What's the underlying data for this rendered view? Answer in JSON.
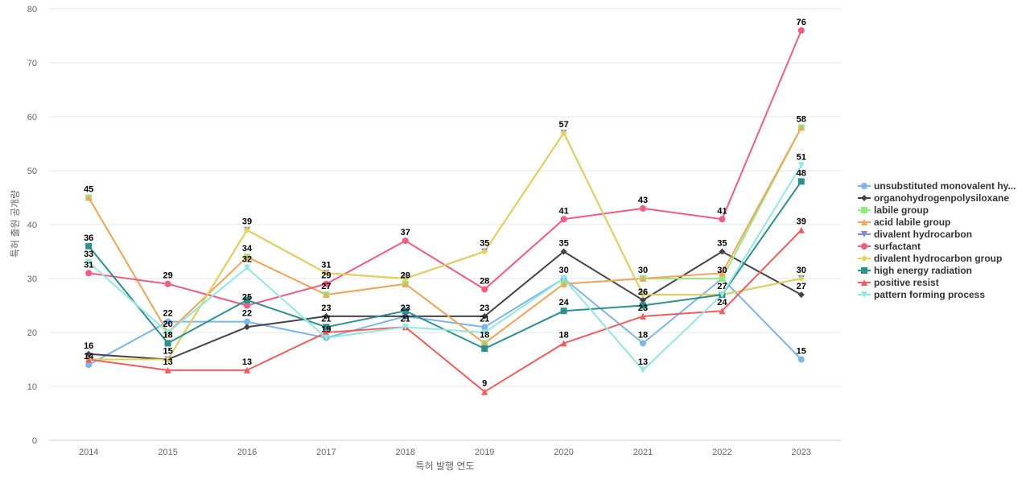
{
  "chart_data": {
    "type": "line",
    "xlabel": "특허 발행 연도",
    "ylabel": "특허 출원 공개량",
    "ylim": [
      0,
      80
    ],
    "yticks": [
      0,
      10,
      20,
      30,
      40,
      50,
      60,
      70,
      80
    ],
    "grid": true,
    "legend_position": "right",
    "categories": [
      "2014",
      "2015",
      "2016",
      "2017",
      "2018",
      "2019",
      "2020",
      "2021",
      "2022",
      "2023"
    ],
    "series": [
      {
        "name": "unsubstituted monovalent hy...",
        "color": "#7cb5ec",
        "marker": "circle",
        "values": [
          14,
          22,
          22,
          19,
          23,
          21,
          30,
          18,
          30,
          15
        ]
      },
      {
        "name": "organohydrogenpolysiloxane",
        "color": "#434348",
        "marker": "diamond",
        "values": [
          16,
          15,
          21,
          23,
          23,
          23,
          35,
          26,
          35,
          27
        ]
      },
      {
        "name": "labile group",
        "color": "#90ed7d",
        "marker": "square",
        "values": [
          45,
          20,
          34,
          27,
          29,
          18,
          29,
          30,
          30,
          58
        ]
      },
      {
        "name": "acid labile group",
        "color": "#f7a35c",
        "marker": "triangle",
        "values": [
          45,
          20,
          34,
          27,
          29,
          18,
          29,
          30,
          31,
          58
        ]
      },
      {
        "name": "divalent hydrocarbon",
        "color": "#8085e9",
        "marker": "triangle-down",
        "values": [
          15,
          15,
          39,
          31,
          30,
          35,
          57,
          27,
          27,
          30
        ]
      },
      {
        "name": "surfactant",
        "color": "#f15c80",
        "marker": "circle",
        "values": [
          31,
          29,
          25,
          29,
          37,
          28,
          41,
          43,
          41,
          76
        ]
      },
      {
        "name": "divalent hydrocarbon group",
        "color": "#e4d354",
        "marker": "diamond",
        "values": [
          15,
          15,
          39,
          31,
          30,
          35,
          57,
          27,
          27,
          30
        ]
      },
      {
        "name": "high energy radiation",
        "color": "#2b908f",
        "marker": "square",
        "values": [
          36,
          18,
          26,
          21,
          24,
          17,
          24,
          25,
          27,
          48
        ]
      },
      {
        "name": "positive resist",
        "color": "#f45b5b",
        "marker": "triangle",
        "values": [
          15,
          13,
          13,
          20,
          21,
          9,
          18,
          23,
          24,
          39
        ]
      },
      {
        "name": "pattern forming process",
        "color": "#91e8e1",
        "marker": "triangle-down",
        "values": [
          33,
          20,
          32,
          19,
          21,
          20,
          30,
          13,
          27,
          51
        ]
      }
    ],
    "data_labels": [
      {
        "x": "2014",
        "y": 45,
        "text": "45"
      },
      {
        "x": "2014",
        "y": 36,
        "text": "36"
      },
      {
        "x": "2014",
        "y": 33,
        "text": "33"
      },
      {
        "x": "2014",
        "y": 31,
        "text": "31"
      },
      {
        "x": "2014",
        "y": 16,
        "text": "16"
      },
      {
        "x": "2014",
        "y": 14,
        "text": "14"
      },
      {
        "x": "2015",
        "y": 29,
        "text": "29"
      },
      {
        "x": "2015",
        "y": 22,
        "text": "22"
      },
      {
        "x": "2015",
        "y": 20,
        "text": "20"
      },
      {
        "x": "2015",
        "y": 18,
        "text": "18"
      },
      {
        "x": "2015",
        "y": 15,
        "text": "15"
      },
      {
        "x": "2015",
        "y": 13,
        "text": "13"
      },
      {
        "x": "2016",
        "y": 39,
        "text": "39"
      },
      {
        "x": "2016",
        "y": 34,
        "text": "34"
      },
      {
        "x": "2016",
        "y": 32,
        "text": "32"
      },
      {
        "x": "2016",
        "y": 25,
        "text": "25"
      },
      {
        "x": "2016",
        "y": 22,
        "text": "22"
      },
      {
        "x": "2016",
        "y": 13,
        "text": "13"
      },
      {
        "x": "2017",
        "y": 31,
        "text": "31"
      },
      {
        "x": "2017",
        "y": 29,
        "text": "29"
      },
      {
        "x": "2017",
        "y": 27,
        "text": "27"
      },
      {
        "x": "2017",
        "y": 23,
        "text": "23"
      },
      {
        "x": "2017",
        "y": 21,
        "text": "21"
      },
      {
        "x": "2017",
        "y": 19,
        "text": "19"
      },
      {
        "x": "2018",
        "y": 37,
        "text": "37"
      },
      {
        "x": "2018",
        "y": 29,
        "text": "29"
      },
      {
        "x": "2018",
        "y": 23,
        "text": "23"
      },
      {
        "x": "2018",
        "y": 21,
        "text": "21"
      },
      {
        "x": "2019",
        "y": 35,
        "text": "35"
      },
      {
        "x": "2019",
        "y": 28,
        "text": "28"
      },
      {
        "x": "2019",
        "y": 23,
        "text": "23"
      },
      {
        "x": "2019",
        "y": 21,
        "text": "21"
      },
      {
        "x": "2019",
        "y": 18,
        "text": "18"
      },
      {
        "x": "2019",
        "y": 9,
        "text": "9"
      },
      {
        "x": "2020",
        "y": 57,
        "text": "57"
      },
      {
        "x": "2020",
        "y": 41,
        "text": "41"
      },
      {
        "x": "2020",
        "y": 35,
        "text": "35"
      },
      {
        "x": "2020",
        "y": 30,
        "text": "30"
      },
      {
        "x": "2020",
        "y": 24,
        "text": "24"
      },
      {
        "x": "2020",
        "y": 18,
        "text": "18"
      },
      {
        "x": "2021",
        "y": 43,
        "text": "43"
      },
      {
        "x": "2021",
        "y": 30,
        "text": "30"
      },
      {
        "x": "2021",
        "y": 26,
        "text": "26"
      },
      {
        "x": "2021",
        "y": 23,
        "text": "23"
      },
      {
        "x": "2021",
        "y": 18,
        "text": "18"
      },
      {
        "x": "2021",
        "y": 13,
        "text": "13"
      },
      {
        "x": "2022",
        "y": 41,
        "text": "41"
      },
      {
        "x": "2022",
        "y": 35,
        "text": "35"
      },
      {
        "x": "2022",
        "y": 30,
        "text": "30"
      },
      {
        "x": "2022",
        "y": 27,
        "text": "27"
      },
      {
        "x": "2022",
        "y": 24,
        "text": "24"
      },
      {
        "x": "2023",
        "y": 76,
        "text": "76"
      },
      {
        "x": "2023",
        "y": 58,
        "text": "58"
      },
      {
        "x": "2023",
        "y": 51,
        "text": "51"
      },
      {
        "x": "2023",
        "y": 48,
        "text": "48"
      },
      {
        "x": "2023",
        "y": 39,
        "text": "39"
      },
      {
        "x": "2023",
        "y": 30,
        "text": "30"
      },
      {
        "x": "2023",
        "y": 27,
        "text": "27"
      },
      {
        "x": "2023",
        "y": 15,
        "text": "15"
      }
    ]
  }
}
